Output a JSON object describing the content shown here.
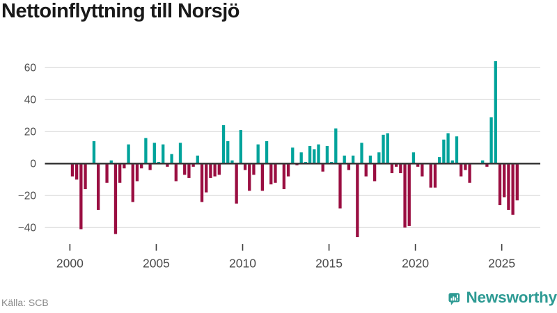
{
  "header": {
    "title": "Nettoinflyttning till Norsjö"
  },
  "footer": {
    "source": "Källa: SCB",
    "brand": "Newsworthy"
  },
  "chart_data": {
    "type": "bar",
    "title": "Nettoinflyttning till Norsjö",
    "frequency": "quarterly",
    "start": "2000-Q1",
    "end": "2025-Q4",
    "x_axis": {
      "tick_labels": [
        "2000",
        "2005",
        "2010",
        "2015",
        "2020",
        "2025"
      ]
    },
    "y_axis": {
      "tick_values": [
        60,
        40,
        20,
        0,
        -20,
        -40
      ],
      "tick_labels": [
        "60",
        "40",
        "20",
        "0",
        "−20",
        "−40"
      ],
      "ylim": [
        -50,
        68
      ]
    },
    "legend": "none",
    "grid": "horizontal",
    "series": [
      {
        "year": 2000,
        "values": [
          -8,
          -10,
          -41,
          -16
        ]
      },
      {
        "year": 2001,
        "values": [
          0,
          14,
          -29,
          0
        ]
      },
      {
        "year": 2002,
        "values": [
          -12,
          2,
          -44,
          -12
        ]
      },
      {
        "year": 2003,
        "values": [
          -3,
          12,
          -24,
          -11
        ]
      },
      {
        "year": 2004,
        "values": [
          -3,
          16,
          -4,
          13
        ]
      },
      {
        "year": 2005,
        "values": [
          1,
          12,
          -2,
          6
        ]
      },
      {
        "year": 2006,
        "values": [
          -11,
          13,
          -7,
          -9
        ]
      },
      {
        "year": 2007,
        "values": [
          -2,
          5,
          -24,
          -18
        ]
      },
      {
        "year": 2008,
        "values": [
          -9,
          -8,
          -7,
          24
        ]
      },
      {
        "year": 2009,
        "values": [
          14,
          2,
          -25,
          21
        ]
      },
      {
        "year": 2010,
        "values": [
          -4,
          -17,
          -7,
          12
        ]
      },
      {
        "year": 2011,
        "values": [
          -17,
          14,
          -13,
          -12
        ]
      },
      {
        "year": 2012,
        "values": [
          0,
          -16,
          -8,
          10
        ]
      },
      {
        "year": 2013,
        "values": [
          -1,
          7,
          1,
          11
        ]
      },
      {
        "year": 2014,
        "values": [
          9,
          12,
          -5,
          11
        ]
      },
      {
        "year": 2015,
        "values": [
          1,
          22,
          -28,
          5
        ]
      },
      {
        "year": 2016,
        "values": [
          -4,
          5,
          -46,
          13
        ]
      },
      {
        "year": 2017,
        "values": [
          -8,
          5,
          -11,
          7
        ]
      },
      {
        "year": 2018,
        "values": [
          18,
          19,
          -6,
          -2
        ]
      },
      {
        "year": 2019,
        "values": [
          -6,
          -40,
          -39,
          7
        ]
      },
      {
        "year": 2020,
        "values": [
          -2,
          -8,
          0,
          -15
        ]
      },
      {
        "year": 2021,
        "values": [
          -15,
          4,
          15,
          19
        ]
      },
      {
        "year": 2022,
        "values": [
          2,
          17,
          -8,
          -4
        ]
      },
      {
        "year": 2023,
        "values": [
          -12,
          0,
          0,
          2
        ]
      },
      {
        "year": 2024,
        "values": [
          -2,
          29,
          64,
          -26
        ]
      },
      {
        "year": 2025,
        "values": [
          -21,
          -29,
          -32,
          -23
        ]
      }
    ],
    "colors": {
      "positive": "#00a39b",
      "negative": "#9a0e41",
      "gridline": "#e2e2e2",
      "zero_line": "#3b3b3b",
      "axis_text": "#4c4c4c",
      "title_text": "#181818",
      "source_text": "#898989",
      "brand_teal": "#2d9a93"
    }
  }
}
